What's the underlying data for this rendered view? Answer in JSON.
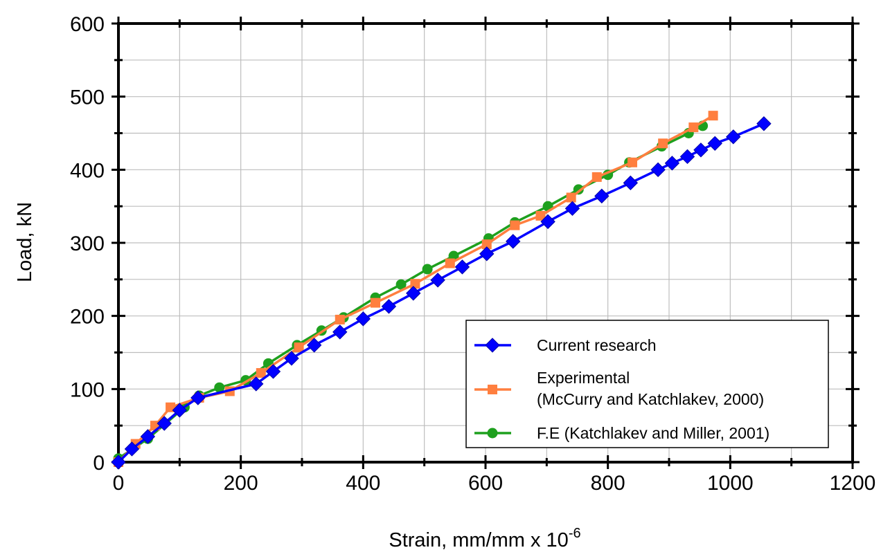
{
  "chart_data": {
    "type": "line",
    "title": "",
    "xlabel": "Strain, mm/mm x 10",
    "xlabel_superscript": "-6",
    "ylabel": "Load, kN",
    "xlim": [
      0,
      1200
    ],
    "ylim": [
      0,
      600
    ],
    "x_ticks": [
      "0",
      "200",
      "400",
      "600",
      "800",
      "1000",
      "1200"
    ],
    "y_ticks": [
      "0",
      "100",
      "200",
      "300",
      "400",
      "500",
      "600"
    ],
    "grid": true,
    "legend_position": "bottom-right",
    "series": [
      {
        "name": "Current research",
        "color": "#0000ff",
        "marker": "diamond",
        "x": [
          0,
          22,
          48,
          75,
          100,
          130,
          225,
          253,
          283,
          320,
          362,
          400,
          442,
          482,
          522,
          562,
          602,
          645,
          702,
          742,
          790,
          837,
          882,
          905,
          930,
          952,
          975,
          1005,
          1055
        ],
        "y": [
          0,
          18,
          35,
          53,
          71,
          88,
          107,
          124,
          142,
          160,
          178,
          196,
          213,
          231,
          249,
          267,
          285,
          302,
          329,
          347,
          364,
          382,
          400,
          409,
          418,
          427,
          436,
          445,
          463
        ]
      },
      {
        "name": "Experimental\n(McCurry and Katchlakev, 2000)",
        "name_line1": "Experimental",
        "name_line2": "(McCurry and Katchlakev, 2000)",
        "color": "#ff7f3f",
        "marker": "square",
        "x": [
          0,
          28,
          60,
          85,
          132,
          182,
          233,
          295,
          362,
          420,
          485,
          542,
          602,
          648,
          690,
          740,
          782,
          840,
          890,
          940,
          972
        ],
        "y": [
          0,
          25,
          50,
          75,
          88,
          97,
          122,
          157,
          195,
          218,
          244,
          272,
          298,
          324,
          337,
          362,
          390,
          410,
          436,
          458,
          474
        ]
      },
      {
        "name": "F.E (Katchlakev and Miller, 2001)",
        "color": "#1ea01e",
        "marker": "circle",
        "x": [
          0,
          48,
          108,
          132,
          165,
          208,
          245,
          292,
          332,
          368,
          420,
          462,
          505,
          548,
          605,
          648,
          702,
          752,
          800,
          835,
          888,
          932,
          955
        ],
        "y": [
          5,
          32,
          75,
          91,
          102,
          112,
          135,
          160,
          180,
          198,
          225,
          243,
          264,
          282,
          306,
          328,
          350,
          373,
          393,
          410,
          432,
          450,
          460
        ]
      }
    ]
  }
}
